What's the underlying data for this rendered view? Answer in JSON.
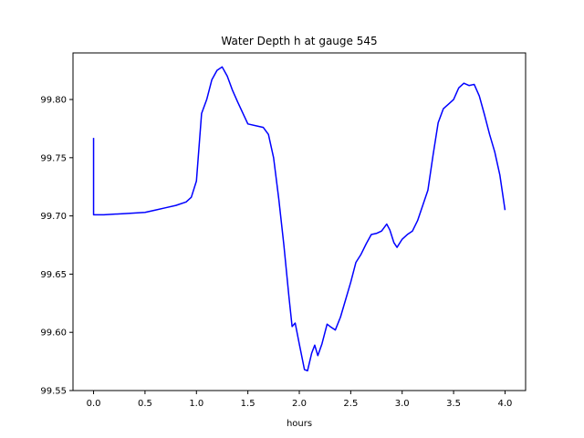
{
  "chart_data": {
    "type": "line",
    "title": "Water Depth h at gauge 545",
    "xlabel": "hours",
    "ylabel": "",
    "xlim": [
      -0.2,
      4.2
    ],
    "ylim": [
      99.55,
      99.84
    ],
    "x_ticks": [
      0.0,
      0.5,
      1.0,
      1.5,
      2.0,
      2.5,
      3.0,
      3.5,
      4.0
    ],
    "x_tick_labels": [
      "0.0",
      "0.5",
      "1.0",
      "1.5",
      "2.0",
      "2.5",
      "3.0",
      "3.5",
      "4.0"
    ],
    "y_ticks": [
      99.55,
      99.6,
      99.65,
      99.7,
      99.75,
      99.8
    ],
    "y_tick_labels": [
      "99.55",
      "99.60",
      "99.65",
      "99.70",
      "99.75",
      "99.80"
    ],
    "grid": false,
    "series": [
      {
        "color": "#0000ff",
        "x": [
          0.0,
          0.0,
          0.1,
          0.3,
          0.5,
          0.6,
          0.7,
          0.8,
          0.9,
          0.95,
          1.0,
          1.05,
          1.1,
          1.15,
          1.2,
          1.25,
          1.3,
          1.35,
          1.4,
          1.5,
          1.6,
          1.65,
          1.7,
          1.75,
          1.8,
          1.85,
          1.9,
          1.93,
          1.96,
          2.0,
          2.05,
          2.08,
          2.12,
          2.15,
          2.18,
          2.22,
          2.27,
          2.3,
          2.35,
          2.4,
          2.45,
          2.5,
          2.55,
          2.6,
          2.65,
          2.7,
          2.75,
          2.8,
          2.85,
          2.88,
          2.92,
          2.95,
          3.0,
          3.05,
          3.1,
          3.15,
          3.2,
          3.25,
          3.3,
          3.35,
          3.4,
          3.45,
          3.5,
          3.55,
          3.6,
          3.65,
          3.7,
          3.75,
          3.8,
          3.85,
          3.9,
          3.95,
          4.0
        ],
        "y": [
          99.767,
          99.701,
          99.701,
          99.702,
          99.703,
          99.705,
          99.707,
          99.709,
          99.712,
          99.716,
          99.73,
          99.788,
          99.8,
          99.817,
          99.825,
          99.828,
          99.82,
          99.808,
          99.798,
          99.779,
          99.777,
          99.776,
          99.77,
          99.75,
          99.715,
          99.675,
          99.63,
          99.605,
          99.608,
          99.59,
          99.568,
          99.567,
          99.582,
          99.589,
          99.58,
          99.59,
          99.607,
          99.605,
          99.602,
          99.613,
          99.628,
          99.643,
          99.66,
          99.667,
          99.676,
          99.684,
          99.685,
          99.687,
          99.693,
          99.688,
          99.677,
          99.673,
          99.68,
          99.684,
          99.687,
          99.696,
          99.709,
          99.722,
          99.752,
          99.78,
          99.792,
          99.796,
          99.8,
          99.81,
          99.814,
          99.812,
          99.813,
          99.803,
          99.787,
          99.77,
          99.755,
          99.735,
          99.705
        ]
      }
    ]
  }
}
